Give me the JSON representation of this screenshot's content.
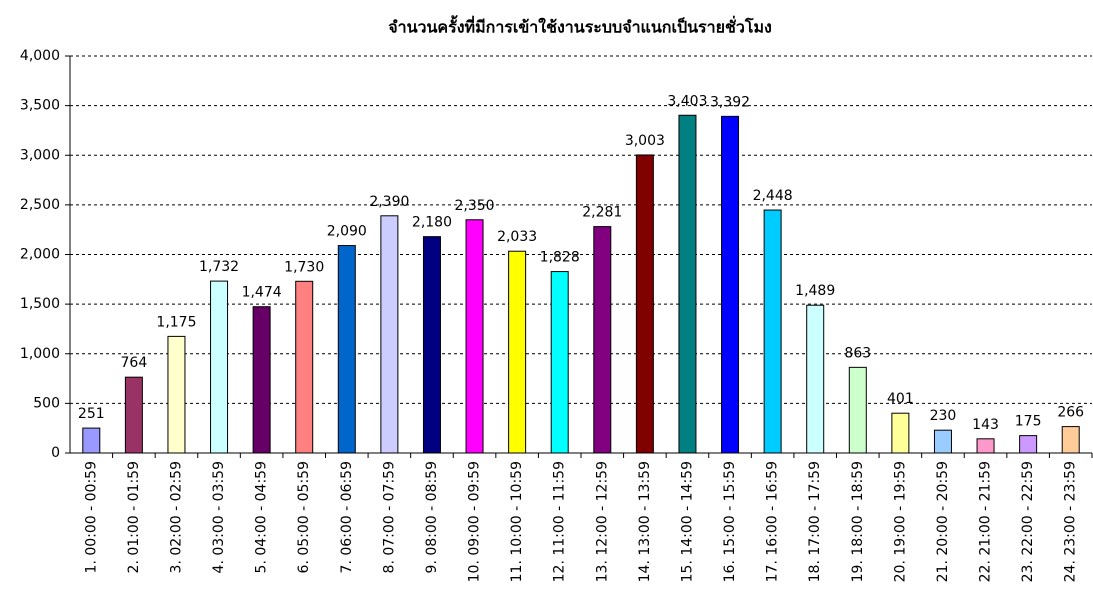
{
  "chart_data": {
    "type": "bar",
    "title": "จำนวนครั้งที่มีการเข้าใช้งานระบบจำแนกเป็นรายชั่วโมง",
    "categories": [
      "1. 00:00 - 00:59",
      "2. 01:00 - 01:59",
      "3. 02:00 - 02:59",
      "4. 03:00 - 03:59",
      "5. 04:00 - 04:59",
      "6. 05:00 - 05:59",
      "7. 06:00 - 06:59",
      "8. 07:00 - 07:59",
      "9. 08:00 - 08:59",
      "10. 09:00 - 09:59",
      "11. 10:00 - 10:59",
      "12. 11:00 - 11:59",
      "13. 12:00 - 12:59",
      "14. 13:00 - 13:59",
      "15. 14:00 - 14:59",
      "16. 15:00 - 15:59",
      "17. 16:00 - 16:59",
      "18. 17:00 - 17:59",
      "19. 18:00 - 18:59",
      "20. 19:00 - 19:59",
      "21. 20:00 - 20:59",
      "22. 21:00 - 21:59",
      "23. 22:00 - 22:59",
      "24. 23:00 - 23:59"
    ],
    "values": [
      251,
      764,
      1175,
      1732,
      1474,
      1730,
      2090,
      2390,
      2180,
      2350,
      2033,
      1828,
      2281,
      3003,
      3403,
      3392,
      2448,
      1489,
      863,
      401,
      230,
      143,
      175,
      266
    ],
    "value_labels": [
      "251",
      "764",
      "1,175",
      "1,732",
      "1,474",
      "1,730",
      "2,090",
      "2,390",
      "2,180",
      "2,350",
      "2,033",
      "1,828",
      "2,281",
      "3,003",
      "3,403",
      "3,392",
      "2,448",
      "1,489",
      "863",
      "401",
      "230",
      "143",
      "175",
      "266"
    ],
    "colors": [
      "#9999ff",
      "#993366",
      "#ffffcc",
      "#ccffff",
      "#660066",
      "#ff8080",
      "#0066cc",
      "#ccccff",
      "#000080",
      "#ff00ff",
      "#ffff00",
      "#00ffff",
      "#800080",
      "#800000",
      "#008080",
      "#0000ff",
      "#00ccff",
      "#ccffff",
      "#ccffcc",
      "#ffff99",
      "#99ccff",
      "#ff99cc",
      "#cc99ff",
      "#ffcc99"
    ],
    "ylim": [
      0,
      4000
    ],
    "yticks": [
      0,
      500,
      {
        "value": 1000,
        "label": "1,000"
      },
      {
        "value": 1500,
        "label": "1,500"
      },
      {
        "value": 2000,
        "label": "2,000"
      },
      {
        "value": 2500,
        "label": "2,500"
      },
      {
        "value": 3000,
        "label": "3,000"
      },
      {
        "value": 3500,
        "label": "3,500"
      },
      {
        "value": 4000,
        "label": "4,000"
      }
    ],
    "grid": true
  }
}
